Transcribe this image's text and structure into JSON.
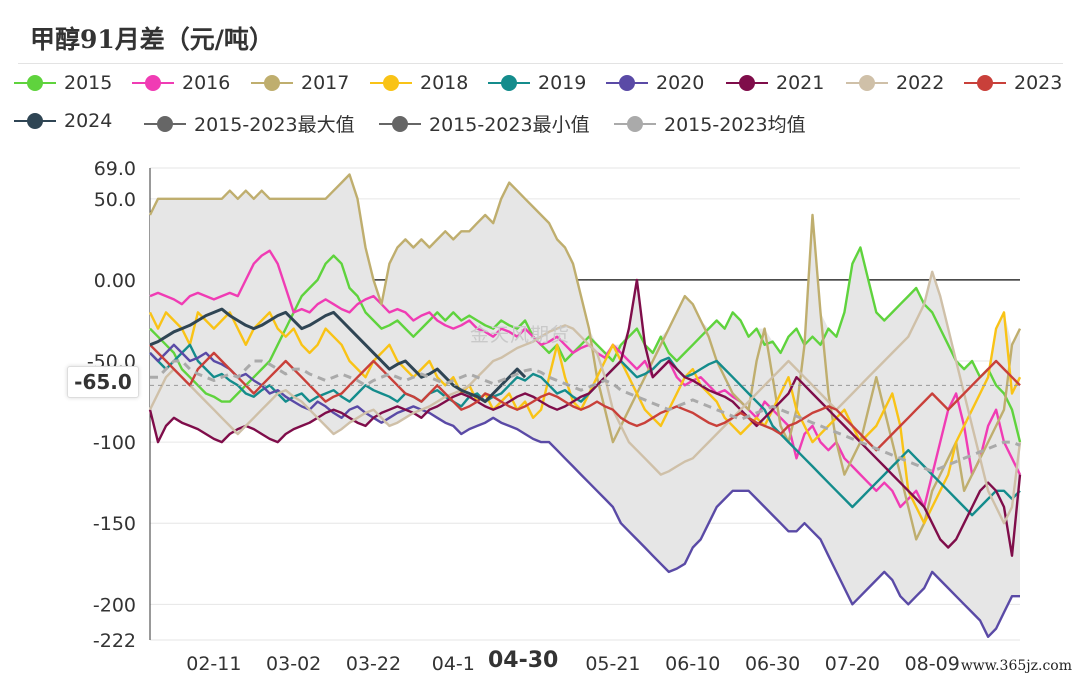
{
  "chart_data": {
    "type": "line",
    "title": "甲醇91月差（元/吨）",
    "xlabel": "",
    "ylabel": "",
    "y_ticks": [
      "69.0",
      "50.0",
      "0.00",
      "-50.0",
      "-100",
      "-150",
      "-200",
      "-222"
    ],
    "y_tick_values": [
      69,
      50,
      0,
      -50,
      -100,
      -150,
      -200,
      -222
    ],
    "ylim": [
      -222,
      69
    ],
    "x_ticks": [
      "02-11",
      "03-02",
      "03-22",
      "04-1",
      "04-30",
      "05-21",
      "06-10",
      "06-30",
      "07-20",
      "08-09"
    ],
    "x_tick_index": [
      8,
      18,
      28,
      38,
      48,
      58,
      68,
      78,
      88,
      98
    ],
    "x_count": 110,
    "legend_position": "top",
    "grid": true,
    "band_name": "2015-2023最大值 / 2015-2023最小值",
    "series": [
      {
        "name": "2015",
        "color": "#5fd33d",
        "values": [
          -30,
          -35,
          -40,
          -45,
          -55,
          -60,
          -65,
          -70,
          -72,
          -75,
          -75,
          -70,
          -65,
          -60,
          -55,
          -50,
          -40,
          -30,
          -20,
          -10,
          -5,
          0,
          10,
          15,
          10,
          -5,
          -10,
          -20,
          -25,
          -30,
          -28,
          -25,
          -30,
          -35,
          -30,
          -25,
          -20,
          -25,
          -20,
          -25,
          -22,
          -25,
          -28,
          -30,
          -25,
          -28,
          -30,
          -25,
          -35,
          -40,
          -45,
          -40,
          -50,
          -45,
          -40,
          -35,
          -40,
          -45,
          -50,
          -40,
          -35,
          -30,
          -40,
          -45,
          -35,
          -45,
          -50,
          -45,
          -40,
          -35,
          -30,
          -25,
          -30,
          -20,
          -25,
          -35,
          -30,
          -40,
          -38,
          -45,
          -35,
          -30,
          -40,
          -35,
          -40,
          -30,
          -35,
          -20,
          10,
          20,
          0,
          -20,
          -25,
          -20,
          -15,
          -10,
          -5,
          -15,
          -20,
          -30,
          -40,
          -50,
          -55,
          -50,
          -60,
          -55,
          -65,
          -70,
          -80,
          -100
        ]
      },
      {
        "name": "2016",
        "color": "#f03cb4",
        "values": [
          -10,
          -8,
          -10,
          -12,
          -15,
          -10,
          -8,
          -10,
          -12,
          -10,
          -8,
          -10,
          0,
          10,
          15,
          18,
          10,
          -5,
          -20,
          -18,
          -20,
          -15,
          -12,
          -15,
          -18,
          -20,
          -15,
          -12,
          -10,
          -15,
          -20,
          -18,
          -20,
          -25,
          -22,
          -20,
          -25,
          -28,
          -30,
          -28,
          -25,
          -30,
          -32,
          -35,
          -30,
          -32,
          -35,
          -30,
          -35,
          -40,
          -38,
          -35,
          -40,
          -45,
          -42,
          -40,
          -45,
          -48,
          -40,
          -45,
          -50,
          -55,
          -50,
          -60,
          -55,
          -50,
          -60,
          -65,
          -62,
          -60,
          -65,
          -70,
          -68,
          -72,
          -75,
          -80,
          -85,
          -75,
          -80,
          -85,
          -90,
          -110,
          -95,
          -90,
          -100,
          -105,
          -100,
          -110,
          -115,
          -120,
          -125,
          -130,
          -125,
          -130,
          -140,
          -135,
          -130,
          -140,
          -120,
          -100,
          -80,
          -70,
          -90,
          -120,
          -110,
          -90,
          -80,
          -100,
          -110,
          -120
        ]
      },
      {
        "name": "2017",
        "color": "#bfae6e",
        "values": [
          40,
          50,
          50,
          50,
          50,
          50,
          50,
          50,
          50,
          50,
          55,
          50,
          55,
          50,
          55,
          50,
          50,
          50,
          50,
          50,
          50,
          50,
          50,
          55,
          60,
          65,
          50,
          20,
          0,
          -15,
          10,
          20,
          25,
          20,
          25,
          20,
          25,
          30,
          25,
          30,
          30,
          35,
          40,
          35,
          50,
          60,
          55,
          50,
          45,
          40,
          35,
          25,
          20,
          10,
          -10,
          -30,
          -60,
          -80,
          -100,
          -90,
          -80,
          -70,
          -60,
          -50,
          -40,
          -30,
          -20,
          -10,
          -15,
          -25,
          -35,
          -50,
          -60,
          -70,
          -75,
          -80,
          -50,
          -30,
          -60,
          -90,
          -100,
          -80,
          -40,
          40,
          -20,
          -70,
          -100,
          -120,
          -110,
          -100,
          -80,
          -60,
          -80,
          -100,
          -120,
          -140,
          -160,
          -150,
          -130,
          -120,
          -110,
          -100,
          -130,
          -120,
          -110,
          -100,
          -90,
          -80,
          -40,
          -30
        ]
      },
      {
        "name": "2018",
        "color": "#f9c316",
        "values": [
          -20,
          -30,
          -20,
          -25,
          -30,
          -40,
          -20,
          -25,
          -30,
          -25,
          -20,
          -30,
          -40,
          -30,
          -25,
          -20,
          -30,
          -35,
          -30,
          -40,
          -45,
          -40,
          -30,
          -35,
          -40,
          -50,
          -55,
          -60,
          -50,
          -45,
          -40,
          -50,
          -55,
          -60,
          -55,
          -50,
          -60,
          -65,
          -60,
          -70,
          -65,
          -75,
          -70,
          -80,
          -75,
          -70,
          -80,
          -75,
          -85,
          -80,
          -60,
          -40,
          -60,
          -75,
          -80,
          -70,
          -60,
          -50,
          -40,
          -50,
          -60,
          -70,
          -80,
          -85,
          -90,
          -80,
          -70,
          -60,
          -55,
          -65,
          -70,
          -75,
          -85,
          -90,
          -95,
          -90,
          -85,
          -90,
          -80,
          -70,
          -60,
          -80,
          -90,
          -100,
          -95,
          -90,
          -85,
          -80,
          -90,
          -100,
          -95,
          -90,
          -80,
          -70,
          -90,
          -130,
          -140,
          -150,
          -140,
          -130,
          -120,
          -100,
          -90,
          -80,
          -70,
          -60,
          -30,
          -20,
          -70,
          -60
        ]
      },
      {
        "name": "2019",
        "color": "#148c8c",
        "values": [
          -45,
          -50,
          -55,
          -50,
          -45,
          -40,
          -50,
          -55,
          -60,
          -58,
          -62,
          -65,
          -70,
          -72,
          -68,
          -65,
          -70,
          -75,
          -72,
          -70,
          -75,
          -72,
          -70,
          -68,
          -72,
          -75,
          -70,
          -65,
          -68,
          -70,
          -72,
          -75,
          -70,
          -72,
          -75,
          -70,
          -68,
          -72,
          -75,
          -78,
          -72,
          -70,
          -75,
          -72,
          -70,
          -65,
          -60,
          -62,
          -58,
          -60,
          -65,
          -70,
          -68,
          -72,
          -75,
          -70,
          -65,
          -60,
          -55,
          -50,
          -55,
          -60,
          -58,
          -55,
          -50,
          -48,
          -55,
          -60,
          -58,
          -55,
          -52,
          -50,
          -55,
          -60,
          -65,
          -70,
          -75,
          -80,
          -90,
          -95,
          -100,
          -105,
          -110,
          -115,
          -120,
          -125,
          -130,
          -135,
          -140,
          -135,
          -130,
          -125,
          -120,
          -115,
          -110,
          -105,
          -110,
          -115,
          -120,
          -125,
          -130,
          -135,
          -140,
          -145,
          -140,
          -135,
          -130,
          -130,
          -135,
          -130
        ]
      },
      {
        "name": "2020",
        "color": "#5a4aa6",
        "values": [
          -45,
          -50,
          -45,
          -40,
          -45,
          -50,
          -48,
          -45,
          -50,
          -52,
          -55,
          -60,
          -58,
          -62,
          -65,
          -70,
          -68,
          -72,
          -75,
          -78,
          -80,
          -75,
          -78,
          -82,
          -85,
          -80,
          -78,
          -82,
          -85,
          -88,
          -85,
          -82,
          -80,
          -78,
          -80,
          -82,
          -85,
          -88,
          -90,
          -95,
          -92,
          -90,
          -88,
          -85,
          -88,
          -90,
          -92,
          -95,
          -98,
          -100,
          -100,
          -105,
          -110,
          -115,
          -120,
          -125,
          -130,
          -135,
          -140,
          -150,
          -155,
          -160,
          -165,
          -170,
          -175,
          -180,
          -178,
          -175,
          -165,
          -160,
          -150,
          -140,
          -135,
          -130,
          -130,
          -130,
          -135,
          -140,
          -145,
          -150,
          -155,
          -155,
          -150,
          -155,
          -160,
          -170,
          -180,
          -190,
          -200,
          -195,
          -190,
          -185,
          -180,
          -185,
          -195,
          -200,
          -195,
          -190,
          -180,
          -185,
          -190,
          -195,
          -200,
          -205,
          -210,
          -220,
          -215,
          -205,
          -195,
          -195
        ]
      },
      {
        "name": "2021",
        "color": "#7f0d4a",
        "values": [
          -80,
          -100,
          -90,
          -85,
          -88,
          -90,
          -92,
          -95,
          -98,
          -100,
          -95,
          -92,
          -90,
          -92,
          -95,
          -98,
          -100,
          -95,
          -92,
          -90,
          -88,
          -85,
          -82,
          -80,
          -82,
          -85,
          -88,
          -90,
          -85,
          -82,
          -80,
          -78,
          -80,
          -82,
          -85,
          -80,
          -78,
          -75,
          -72,
          -70,
          -72,
          -75,
          -78,
          -80,
          -78,
          -75,
          -72,
          -70,
          -72,
          -75,
          -78,
          -80,
          -78,
          -75,
          -72,
          -70,
          -65,
          -60,
          -55,
          -50,
          -30,
          0,
          -40,
          -60,
          -55,
          -50,
          -55,
          -60,
          -62,
          -65,
          -68,
          -70,
          -72,
          -75,
          -80,
          -85,
          -90,
          -85,
          -80,
          -75,
          -70,
          -60,
          -65,
          -70,
          -75,
          -80,
          -85,
          -90,
          -95,
          -100,
          -105,
          -110,
          -115,
          -120,
          -125,
          -130,
          -135,
          -140,
          -150,
          -160,
          -165,
          -160,
          -150,
          -140,
          -130,
          -125,
          -130,
          -140,
          -170,
          -120
        ]
      },
      {
        "name": "2022",
        "color": "#cfc0a8",
        "values": [
          -80,
          -70,
          -60,
          -55,
          -60,
          -65,
          -70,
          -75,
          -80,
          -85,
          -90,
          -95,
          -90,
          -85,
          -80,
          -75,
          -70,
          -68,
          -72,
          -75,
          -80,
          -85,
          -90,
          -95,
          -92,
          -88,
          -85,
          -82,
          -80,
          -85,
          -90,
          -88,
          -85,
          -82,
          -80,
          -78,
          -75,
          -72,
          -70,
          -68,
          -65,
          -60,
          -55,
          -50,
          -48,
          -45,
          -42,
          -40,
          -38,
          -35,
          -32,
          -30,
          -28,
          -30,
          -35,
          -40,
          -45,
          -60,
          -80,
          -90,
          -100,
          -105,
          -110,
          -115,
          -120,
          -118,
          -115,
          -112,
          -110,
          -105,
          -100,
          -95,
          -90,
          -85,
          -80,
          -75,
          -70,
          -65,
          -60,
          -55,
          -50,
          -55,
          -60,
          -65,
          -70,
          -75,
          -80,
          -75,
          -70,
          -65,
          -60,
          -55,
          -50,
          -45,
          -40,
          -35,
          -25,
          -15,
          5,
          -10,
          -30,
          -50,
          -70,
          -90,
          -110,
          -130,
          -140,
          -150,
          -140,
          -100
        ]
      },
      {
        "name": "2023",
        "color": "#c9403a",
        "values": [
          -40,
          -45,
          -50,
          -55,
          -60,
          -65,
          -55,
          -50,
          -45,
          -50,
          -55,
          -60,
          -65,
          -70,
          -65,
          -60,
          -55,
          -50,
          -55,
          -60,
          -65,
          -70,
          -75,
          -72,
          -70,
          -65,
          -60,
          -55,
          -50,
          -55,
          -60,
          -65,
          -70,
          -72,
          -75,
          -70,
          -65,
          -70,
          -75,
          -80,
          -78,
          -75,
          -70,
          -72,
          -75,
          -78,
          -80,
          -78,
          -75,
          -72,
          -70,
          -72,
          -75,
          -78,
          -80,
          -78,
          -75,
          -78,
          -80,
          -85,
          -88,
          -90,
          -88,
          -85,
          -82,
          -80,
          -78,
          -80,
          -82,
          -85,
          -88,
          -90,
          -88,
          -85,
          -82,
          -85,
          -88,
          -90,
          -92,
          -95,
          -90,
          -88,
          -85,
          -82,
          -80,
          -78,
          -80,
          -85,
          -90,
          -95,
          -100,
          -105,
          -100,
          -95,
          -90,
          -85,
          -80,
          -75,
          -70,
          -75,
          -80,
          -75,
          -70,
          -65,
          -60,
          -55,
          -50,
          -55,
          -60,
          -65
        ]
      },
      {
        "name": "2024",
        "color": "#2f4554",
        "values": [
          -40,
          -38,
          -35,
          -32,
          -30,
          -28,
          -25,
          -22,
          -20,
          -18,
          -22,
          -25,
          -28,
          -30,
          -28,
          -25,
          -22,
          -20,
          -25,
          -30,
          -28,
          -25,
          -22,
          -20,
          -25,
          -30,
          -35,
          -40,
          -45,
          -50,
          -55,
          -52,
          -50,
          -55,
          -60,
          -58,
          -55,
          -60,
          -65,
          -68,
          -70,
          -72,
          -75,
          -70,
          -65,
          -60,
          -55,
          -60
        ]
      },
      {
        "name": "2015-2023最大值",
        "color": "#666666",
        "values": []
      },
      {
        "name": "2015-2023最小值",
        "color": "#666666",
        "values": []
      },
      {
        "name": "2015-2023均值",
        "color": "#aaaaaa",
        "values": [
          -60,
          -60,
          -55,
          -50,
          -50,
          -55,
          -58,
          -60,
          -62,
          -60,
          -58,
          -60,
          -55,
          -50,
          -50,
          -52,
          -55,
          -58,
          -55,
          -55,
          -58,
          -60,
          -62,
          -60,
          -58,
          -60,
          -62,
          -65,
          -62,
          -60,
          -58,
          -60,
          -62,
          -60,
          -58,
          -60,
          -62,
          -64,
          -62,
          -60,
          -58,
          -60,
          -62,
          -64,
          -62,
          -60,
          -58,
          -56,
          -55,
          -57,
          -60,
          -62,
          -64,
          -66,
          -68,
          -66,
          -64,
          -62,
          -64,
          -68,
          -70,
          -72,
          -74,
          -76,
          -78,
          -80,
          -78,
          -76,
          -74,
          -76,
          -78,
          -80,
          -82,
          -84,
          -86,
          -84,
          -82,
          -80,
          -78,
          -80,
          -82,
          -84,
          -86,
          -88,
          -90,
          -92,
          -94,
          -96,
          -98,
          -100,
          -102,
          -104,
          -106,
          -108,
          -110,
          -112,
          -114,
          -116,
          -118,
          -116,
          -114,
          -112,
          -110,
          -108,
          -106,
          -104,
          -102,
          -100,
          -100,
          -102
        ]
      }
    ],
    "markers": {
      "y_cursor_label": "-65.0",
      "x_cursor_label": "04-30"
    }
  },
  "watermark": "金天风期货",
  "footer": "www.365jz.com"
}
